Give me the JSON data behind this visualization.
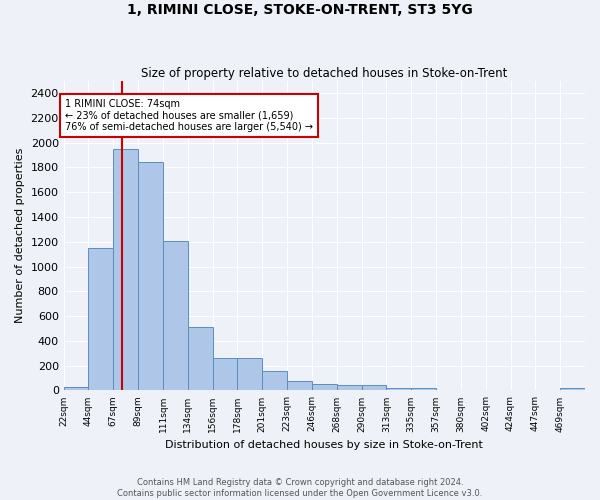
{
  "title": "1, RIMINI CLOSE, STOKE-ON-TRENT, ST3 5YG",
  "subtitle": "Size of property relative to detached houses in Stoke-on-Trent",
  "xlabel": "Distribution of detached houses by size in Stoke-on-Trent",
  "ylabel": "Number of detached properties",
  "bin_labels": [
    "22sqm",
    "44sqm",
    "67sqm",
    "89sqm",
    "111sqm",
    "134sqm",
    "156sqm",
    "178sqm",
    "201sqm",
    "223sqm",
    "246sqm",
    "268sqm",
    "290sqm",
    "313sqm",
    "335sqm",
    "357sqm",
    "380sqm",
    "402sqm",
    "424sqm",
    "447sqm",
    "469sqm"
  ],
  "bar_heights": [
    30,
    1150,
    1950,
    1840,
    1210,
    510,
    265,
    265,
    155,
    80,
    50,
    45,
    40,
    20,
    20,
    0,
    0,
    0,
    0,
    0,
    20
  ],
  "bar_color": "#aec6e8",
  "bar_edge_color": "#5a8fc0",
  "ylim": [
    0,
    2500
  ],
  "yticks": [
    0,
    200,
    400,
    600,
    800,
    1000,
    1200,
    1400,
    1600,
    1800,
    2000,
    2200,
    2400
  ],
  "property_size_idx": 2,
  "property_size_label": "74sqm",
  "vline_color": "#cc0000",
  "annotation_text": "1 RIMINI CLOSE: 74sqm\n← 23% of detached houses are smaller (1,659)\n76% of semi-detached houses are larger (5,540) →",
  "annotation_box_color": "#ffffff",
  "annotation_box_edge": "#cc0000",
  "bg_color": "#eef2f8",
  "grid_color": "#ffffff",
  "footer_line1": "Contains HM Land Registry data © Crown copyright and database right 2024.",
  "footer_line2": "Contains public sector information licensed under the Open Government Licence v3.0."
}
